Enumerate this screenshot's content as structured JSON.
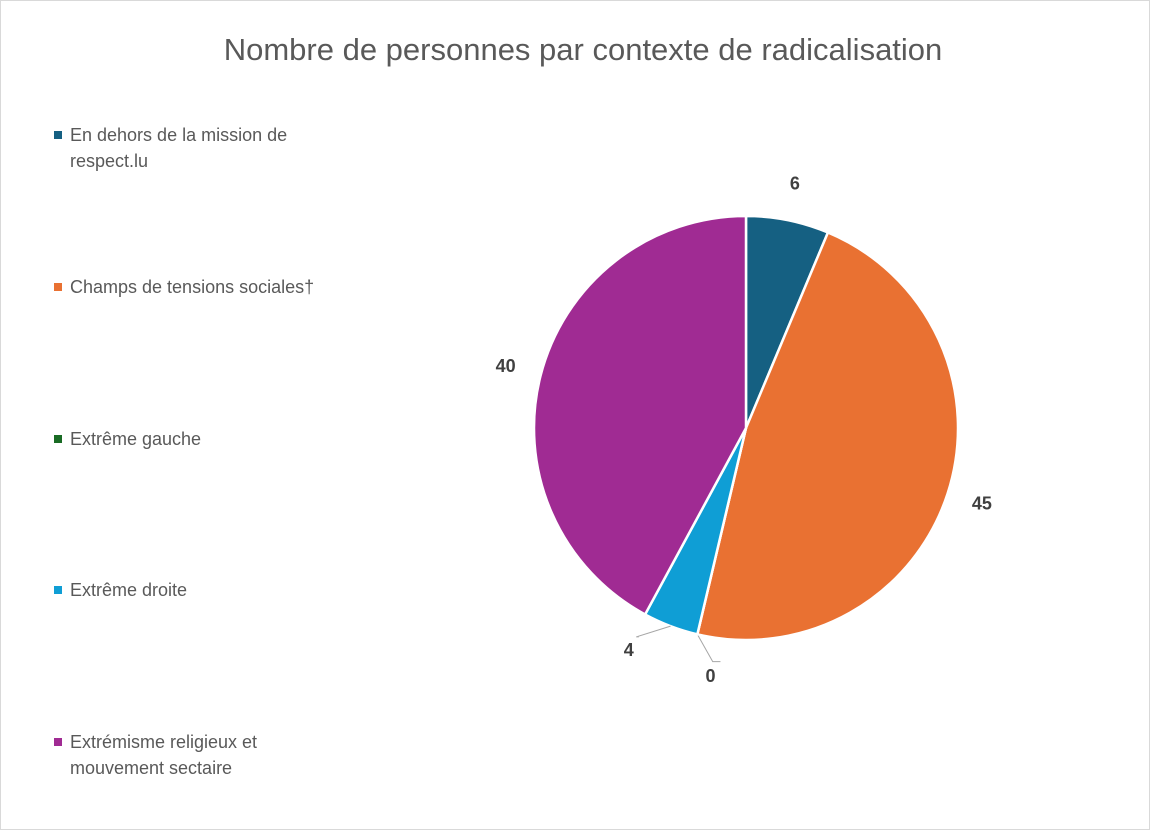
{
  "chart_data": {
    "type": "pie",
    "title": "Nombre de personnes par contexte de radicalisation",
    "categories": [
      "En dehors de la mission de respect.lu",
      "Champs de tensions sociales†",
      "Extrême gauche",
      "Extrême droite",
      "Extrémisme religieux et mouvement sectaire"
    ],
    "values": [
      6,
      45,
      0,
      4,
      40
    ],
    "colors": [
      "#156082",
      "#e97132",
      "#196b24",
      "#0f9ed5",
      "#a02b93"
    ],
    "legend": "left"
  }
}
